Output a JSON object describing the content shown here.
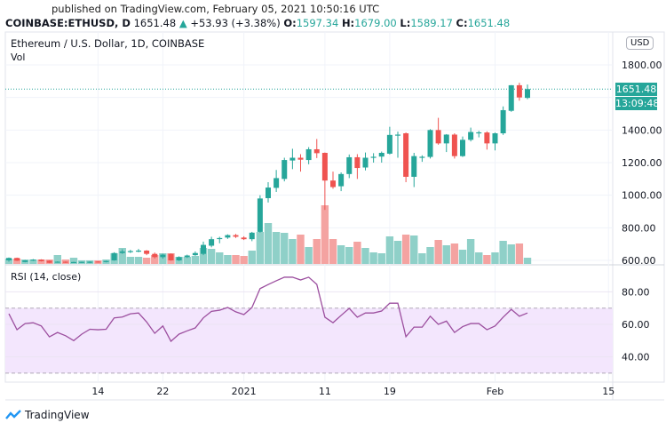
{
  "header": {
    "published": "published on TradingView.com, February 05, 2021 10:50:16 UTC",
    "symbol": "COINBASE:ETHUSD, D",
    "last": "1651.48",
    "change": "+53.93 (+3.38%)",
    "o_label": "O:",
    "o": "1597.34",
    "h_label": "H:",
    "h": "1679.00",
    "l_label": "L:",
    "l": "1589.17",
    "c_label": "C:",
    "c": "1651.48"
  },
  "chart": {
    "title": "Ethereum / U.S. Dollar, 1D, COINBASE",
    "volume_label": "Vol",
    "rsi_label": "RSI (14, close)",
    "currency": "USD",
    "last_price_label": "1651.48",
    "countdown": "13:09:48"
  },
  "brand": "TradingView",
  "colors": {
    "up": "#26a69a",
    "down": "#ef5350",
    "up_vol": "#8fd0c8",
    "down_vol": "#f4a3a1",
    "rsi": "#9c4f9f",
    "rsi_band": "#f3e6fd"
  },
  "chart_data": [
    {
      "type": "candlestick",
      "title": "Ethereum / U.S. Dollar, 1D, COINBASE",
      "x_start": "2020-12-03",
      "x_end": "2021-02-05",
      "price_ticks": [
        "1800.00",
        "1400.00",
        "1200.00",
        "1000.00",
        "800.00",
        "600.00"
      ],
      "price_tick_values": [
        1800,
        1400,
        1200,
        1000,
        800,
        600
      ],
      "ylim": [
        590,
        1820
      ],
      "x_tick_labels": [
        {
          "label": "14",
          "index": 11
        },
        {
          "label": "22",
          "index": 19
        },
        {
          "label": "2021",
          "index": 29
        },
        {
          "label": "11",
          "index": 39
        },
        {
          "label": "19",
          "index": 47
        },
        {
          "label": "Feb",
          "index": 60
        },
        {
          "label": "15",
          "index": 74
        }
      ],
      "ohlc": [
        [
          600,
          618,
          592,
          615
        ],
        [
          615,
          617,
          596,
          598
        ],
        [
          590,
          602,
          588,
          600
        ],
        [
          600,
          608,
          596,
          605
        ],
        [
          605,
          607,
          593,
          595
        ],
        [
          598,
          600,
          583,
          585
        ],
        [
          590,
          594,
          586,
          592
        ],
        [
          592,
          594,
          584,
          586
        ],
        [
          588,
          592,
          584,
          590
        ],
        [
          588,
          592,
          584,
          591
        ],
        [
          585,
          594,
          583,
          592
        ],
        [
          593,
          595,
          586,
          588
        ],
        [
          590,
          598,
          588,
          596
        ],
        [
          600,
          650,
          598,
          645
        ],
        [
          645,
          668,
          640,
          655
        ],
        [
          652,
          665,
          645,
          657
        ],
        [
          657,
          670,
          650,
          660
        ],
        [
          660,
          663,
          632,
          640
        ],
        [
          640,
          648,
          612,
          620
        ],
        [
          620,
          640,
          610,
          635
        ],
        [
          640,
          642,
          598,
          600
        ],
        [
          600,
          625,
          596,
          620
        ],
        [
          620,
          635,
          615,
          630
        ],
        [
          632,
          655,
          628,
          645
        ],
        [
          640,
          715,
          632,
          695
        ],
        [
          690,
          745,
          680,
          730
        ],
        [
          735,
          745,
          705,
          737
        ],
        [
          740,
          760,
          732,
          755
        ],
        [
          755,
          762,
          738,
          745
        ],
        [
          740,
          748,
          725,
          730
        ],
        [
          730,
          775,
          718,
          770
        ],
        [
          775,
          1000,
          770,
          980
        ],
        [
          982,
          1080,
          955,
          1047
        ],
        [
          1045,
          1155,
          1020,
          1105
        ],
        [
          1100,
          1230,
          1085,
          1216
        ],
        [
          1213,
          1285,
          1160,
          1230
        ],
        [
          1230,
          1252,
          1145,
          1218
        ],
        [
          1216,
          1295,
          1190,
          1282
        ],
        [
          1282,
          1345,
          1228,
          1258
        ],
        [
          1260,
          1262,
          910,
          1090
        ],
        [
          1090,
          1145,
          1040,
          1050
        ],
        [
          1055,
          1140,
          1025,
          1130
        ],
        [
          1130,
          1250,
          1105,
          1233
        ],
        [
          1233,
          1252,
          1100,
          1167
        ],
        [
          1170,
          1262,
          1152,
          1230
        ],
        [
          1230,
          1258,
          1200,
          1236
        ],
        [
          1237,
          1268,
          1200,
          1260
        ],
        [
          1255,
          1420,
          1250,
          1370
        ],
        [
          1368,
          1390,
          1230,
          1372
        ],
        [
          1380,
          1385,
          1080,
          1113
        ],
        [
          1113,
          1260,
          1050,
          1240
        ],
        [
          1235,
          1245,
          1205,
          1236
        ],
        [
          1235,
          1405,
          1225,
          1400
        ],
        [
          1400,
          1475,
          1310,
          1318
        ],
        [
          1318,
          1375,
          1265,
          1372
        ],
        [
          1372,
          1380,
          1225,
          1240
        ],
        [
          1240,
          1360,
          1235,
          1340
        ],
        [
          1340,
          1415,
          1330,
          1388
        ],
        [
          1385,
          1395,
          1355,
          1386
        ],
        [
          1385,
          1392,
          1280,
          1318
        ],
        [
          1318,
          1385,
          1275,
          1380
        ],
        [
          1380,
          1545,
          1370,
          1522
        ],
        [
          1518,
          1676,
          1512,
          1675
        ],
        [
          1675,
          1690,
          1580,
          1600
        ],
        [
          1597.34,
          1679,
          1589.17,
          1651.48
        ]
      ],
      "volume_relative": [
        6,
        6,
        5,
        5,
        5,
        5,
        10,
        5,
        7,
        4,
        4,
        4,
        5,
        12,
        18,
        8,
        8,
        7,
        10,
        12,
        12,
        8,
        8,
        9,
        18,
        17,
        13,
        10,
        10,
        9,
        15,
        36,
        46,
        36,
        35,
        28,
        33,
        19,
        28,
        66,
        28,
        21,
        19,
        25,
        18,
        13,
        12,
        31,
        26,
        33,
        32,
        12,
        19,
        27,
        21,
        23,
        16,
        28,
        13,
        10,
        13,
        26,
        22,
        23,
        7
      ]
    },
    {
      "type": "line",
      "title": "RSI (14, close)",
      "y_ticks": [
        "80.00",
        "60.00",
        "40.00"
      ],
      "y_tick_values": [
        80,
        60,
        40
      ],
      "ylim": [
        22,
        98
      ],
      "bands": [
        30,
        70
      ],
      "values": [
        66.5,
        56.7,
        60.5,
        61,
        59,
        52.3,
        55,
        53,
        50,
        54,
        57,
        56.7,
        57,
        64,
        64.5,
        66.5,
        67,
        61.5,
        54.5,
        59,
        49.6,
        54,
        56,
        57.8,
        64,
        68,
        68.7,
        70.4,
        67.7,
        66,
        70.4,
        82,
        84.5,
        86.8,
        89,
        89,
        87.3,
        89,
        84.6,
        64.4,
        61,
        65.5,
        69.8,
        64.4,
        67,
        67,
        68.2,
        73,
        73,
        52.4,
        58.3,
        58.3,
        65,
        60,
        62,
        55,
        58.6,
        60.5,
        60.5,
        56.7,
        59,
        64.4,
        69.2,
        65,
        67
      ]
    }
  ]
}
